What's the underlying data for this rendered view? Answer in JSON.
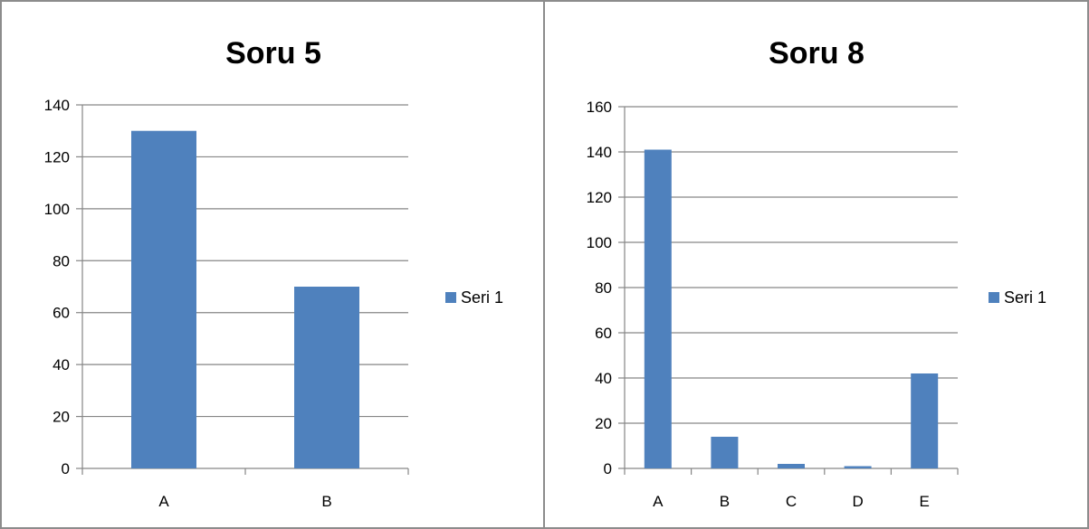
{
  "chart_data": [
    {
      "type": "bar",
      "title": "Soru 5",
      "categories": [
        "A",
        "B"
      ],
      "series": [
        {
          "name": "Seri 1",
          "values": [
            130,
            70
          ]
        }
      ],
      "ylim": [
        0,
        140
      ],
      "yticks": [
        0,
        20,
        40,
        60,
        80,
        100,
        120,
        140
      ],
      "grid": true,
      "legend": "right",
      "color": "#4f81bd"
    },
    {
      "type": "bar",
      "title": "Soru 8",
      "categories": [
        "A",
        "B",
        "C",
        "D",
        "E"
      ],
      "series": [
        {
          "name": "Seri 1",
          "values": [
            141,
            14,
            2,
            1,
            42
          ]
        }
      ],
      "ylim": [
        0,
        160
      ],
      "yticks": [
        0,
        20,
        40,
        60,
        80,
        100,
        120,
        140,
        160
      ],
      "grid": true,
      "legend": "right",
      "color": "#4f81bd"
    }
  ]
}
